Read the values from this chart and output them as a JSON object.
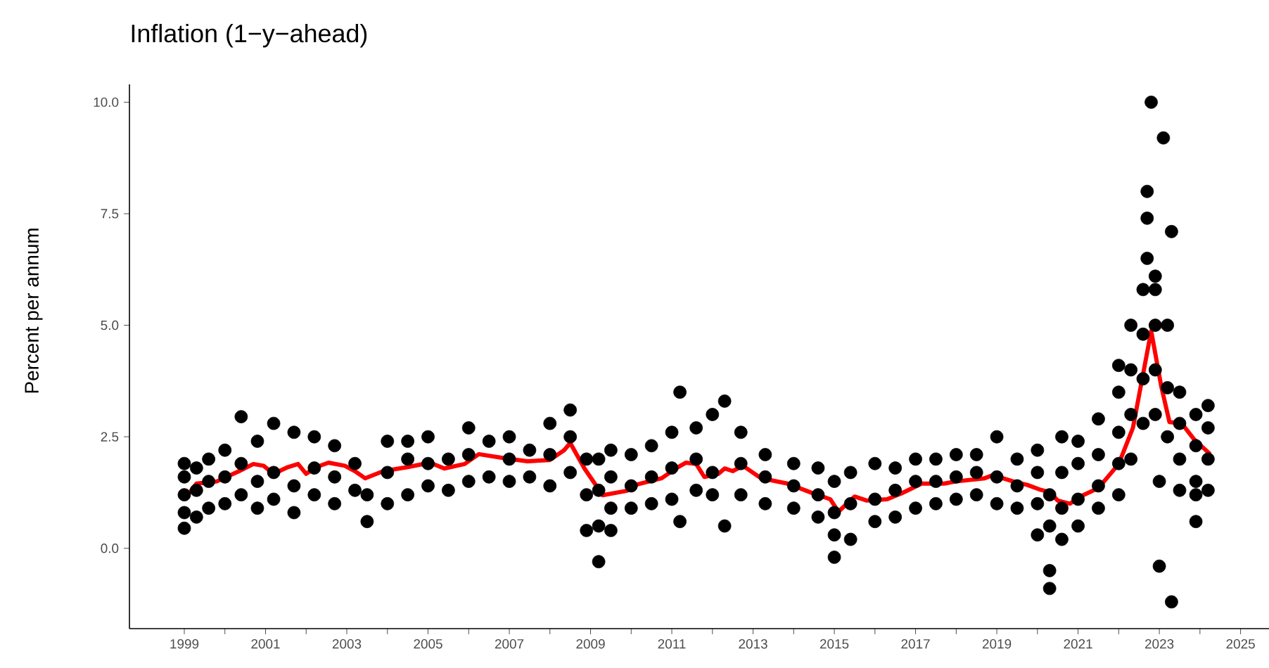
{
  "chart_data": {
    "type": "scatter",
    "title": "Inflation (1−y−ahead)",
    "ylabel": "Percent per annum",
    "xlim": [
      1997.65,
      2025.7
    ],
    "ylim": [
      -1.8,
      10.4
    ],
    "xticks": [
      1999,
      {
        "value": 2000,
        "label": null
      },
      2001,
      {
        "value": 2002,
        "label": null
      },
      2003,
      {
        "value": 2004,
        "label": null
      },
      2005,
      {
        "value": 2006,
        "label": null
      },
      2007,
      {
        "value": 2008,
        "label": null
      },
      2009,
      {
        "value": 2010,
        "label": null
      },
      2011,
      {
        "value": 2012,
        "label": null
      },
      2013,
      {
        "value": 2014,
        "label": null
      },
      2015,
      {
        "value": 2016,
        "label": null
      },
      2017,
      {
        "value": 2018,
        "label": null
      },
      2019,
      {
        "value": 2020,
        "label": null
      },
      2021,
      {
        "value": 2022,
        "label": null
      },
      2023,
      {
        "value": 2024,
        "label": null
      },
      2025
    ],
    "yticks": [
      {
        "value": 0,
        "label": "0.0"
      },
      2.5,
      {
        "value": 5,
        "label": "5.0"
      },
      7.5,
      {
        "value": 10,
        "label": "10.0"
      }
    ],
    "series": [
      {
        "color": "#000000",
        "marker": "circle",
        "x": [
          1999.0,
          1999.0,
          1999.0,
          1999.0,
          1999.0,
          1999.3,
          1999.3,
          1999.3,
          1999.6,
          1999.6,
          1999.6,
          2000.0,
          2000.0,
          2000.0,
          2000.4,
          2000.4,
          2000.4,
          2000.8,
          2000.8,
          2000.8,
          2001.2,
          2001.2,
          2001.2,
          2001.7,
          2001.7,
          2001.7,
          2002.2,
          2002.2,
          2002.2,
          2002.7,
          2002.7,
          2002.7,
          2003.2,
          2003.2,
          2003.5,
          2003.5,
          2004.0,
          2004.0,
          2004.0,
          2004.5,
          2004.5,
          2004.5,
          2005.0,
          2005.0,
          2005.0,
          2005.5,
          2005.5,
          2006.0,
          2006.0,
          2006.0,
          2006.5,
          2006.5,
          2007.0,
          2007.0,
          2007.0,
          2007.5,
          2007.5,
          2008.0,
          2008.0,
          2008.0,
          2008.5,
          2008.5,
          2008.5,
          2008.9,
          2008.9,
          2008.9,
          2009.2,
          2009.2,
          2009.2,
          2009.2,
          2009.5,
          2009.5,
          2009.5,
          2009.5,
          2010.0,
          2010.0,
          2010.0,
          2010.5,
          2010.5,
          2010.5,
          2011.0,
          2011.0,
          2011.0,
          2011.2,
          2011.2,
          2011.6,
          2011.6,
          2011.6,
          2012.0,
          2012.0,
          2012.0,
          2012.3,
          2012.3,
          2012.7,
          2012.7,
          2012.7,
          2013.3,
          2013.3,
          2013.3,
          2014.0,
          2014.0,
          2014.0,
          2014.6,
          2014.6,
          2014.6,
          2015.0,
          2015.0,
          2015.0,
          2015.0,
          2015.4,
          2015.4,
          2015.4,
          2016.0,
          2016.0,
          2016.0,
          2016.5,
          2016.5,
          2016.5,
          2017.0,
          2017.0,
          2017.0,
          2017.5,
          2017.5,
          2017.5,
          2018.0,
          2018.0,
          2018.0,
          2018.5,
          2018.5,
          2018.5,
          2019.0,
          2019.0,
          2019.0,
          2019.5,
          2019.5,
          2019.5,
          2020.0,
          2020.0,
          2020.0,
          2020.0,
          2020.3,
          2020.3,
          2020.3,
          2020.3,
          2020.6,
          2020.6,
          2020.6,
          2020.6,
          2021.0,
          2021.0,
          2021.0,
          2021.0,
          2021.5,
          2021.5,
          2021.5,
          2021.5,
          2022.0,
          2022.0,
          2022.0,
          2022.0,
          2022.0,
          2022.3,
          2022.3,
          2022.3,
          2022.3,
          2022.6,
          2022.6,
          2022.6,
          2022.6,
          2022.8,
          2022.7,
          2022.7,
          2022.7,
          2022.9,
          2022.9,
          2022.9,
          2022.9,
          2022.9,
          2023.1,
          2023.0,
          2023.0,
          2023.3,
          2023.3,
          2023.2,
          2023.2,
          2023.2,
          2023.5,
          2023.5,
          2023.5,
          2023.5,
          2023.9,
          2023.9,
          2023.9,
          2023.9,
          2023.9,
          2024.2,
          2024.2,
          2024.2,
          2024.2
        ],
        "values": [
          0.45,
          0.8,
          1.2,
          1.6,
          1.9,
          0.7,
          1.3,
          1.8,
          0.9,
          1.5,
          2.0,
          1.0,
          1.6,
          2.2,
          2.95,
          1.2,
          1.9,
          0.9,
          1.5,
          2.4,
          1.1,
          1.7,
          2.8,
          0.8,
          1.4,
          2.6,
          1.2,
          1.8,
          2.5,
          1.0,
          1.6,
          2.3,
          1.3,
          1.9,
          0.6,
          1.2,
          1.0,
          1.7,
          2.4,
          1.2,
          2.0,
          2.4,
          1.4,
          1.9,
          2.5,
          1.3,
          2.0,
          1.5,
          2.1,
          2.7,
          1.6,
          2.4,
          1.5,
          2.0,
          2.5,
          1.6,
          2.2,
          1.4,
          2.1,
          2.8,
          1.7,
          2.5,
          3.1,
          0.4,
          1.2,
          2.0,
          -0.3,
          0.5,
          1.3,
          2.0,
          0.4,
          0.9,
          1.6,
          2.2,
          0.9,
          1.4,
          2.1,
          1.0,
          1.6,
          2.3,
          1.1,
          1.8,
          2.6,
          3.5,
          0.6,
          1.3,
          2.0,
          2.7,
          1.2,
          1.7,
          3.0,
          3.3,
          0.5,
          1.2,
          1.9,
          2.6,
          1.0,
          1.6,
          2.1,
          0.9,
          1.4,
          1.9,
          0.7,
          1.2,
          1.8,
          -0.2,
          0.3,
          0.8,
          1.5,
          0.2,
          1.0,
          1.7,
          0.6,
          1.1,
          1.9,
          0.7,
          1.3,
          1.8,
          0.9,
          1.5,
          2.0,
          1.0,
          1.5,
          2.0,
          1.1,
          1.6,
          2.1,
          1.2,
          1.7,
          2.1,
          1.0,
          1.6,
          2.5,
          0.9,
          1.4,
          2.0,
          0.3,
          1.0,
          1.7,
          2.2,
          -0.5,
          -0.9,
          0.5,
          1.2,
          0.2,
          0.9,
          1.7,
          2.5,
          0.5,
          1.1,
          1.9,
          2.4,
          0.9,
          1.4,
          2.1,
          2.9,
          1.2,
          1.9,
          2.6,
          3.5,
          4.1,
          2.0,
          3.0,
          4.0,
          5.0,
          2.8,
          3.8,
          4.8,
          5.8,
          10.0,
          8.0,
          7.4,
          6.5,
          3.0,
          4.0,
          5.0,
          5.8,
          6.1,
          9.2,
          1.5,
          -0.4,
          7.1,
          -1.2,
          5.0,
          2.5,
          3.6,
          2.0,
          2.8,
          3.5,
          1.3,
          1.5,
          2.3,
          3.0,
          0.6,
          1.2,
          1.3,
          2.0,
          2.7,
          3.2
        ]
      },
      {
        "type": "line",
        "color": "#ff0000",
        "marker": "none",
        "x": [
          1999.0,
          1999.3,
          1999.8,
          2000.35,
          2000.7,
          2000.95,
          2001.2,
          2001.55,
          2001.8,
          2002.0,
          2002.25,
          2002.55,
          2002.95,
          2003.2,
          2003.45,
          2003.9,
          2004.5,
          2005.05,
          2005.4,
          2005.9,
          2006.25,
          2006.95,
          2007.45,
          2008.0,
          2008.35,
          2008.5,
          2008.85,
          2009.3,
          2009.9,
          2010.1,
          2010.75,
          2011.1,
          2011.35,
          2011.6,
          2011.8,
          2012.15,
          2012.3,
          2012.5,
          2012.75,
          2013.2,
          2013.85,
          2014.4,
          2014.9,
          2015.1,
          2015.5,
          2015.8,
          2016.3,
          2016.65,
          2017.15,
          2017.7,
          2018.0,
          2018.7,
          2018.9,
          2019.4,
          2019.75,
          2020.05,
          2020.3,
          2020.5,
          2020.8,
          2021.05,
          2021.5,
          2022.0,
          2022.35,
          2022.8,
          2023.05,
          2023.25,
          2023.55,
          2023.85,
          2024.25
        ],
        "values": [
          1.1,
          1.45,
          1.5,
          1.73,
          1.89,
          1.85,
          1.67,
          1.82,
          1.89,
          1.67,
          1.82,
          1.92,
          1.85,
          1.73,
          1.57,
          1.73,
          1.82,
          1.92,
          1.79,
          1.89,
          2.11,
          2.01,
          1.95,
          1.98,
          2.2,
          2.36,
          1.79,
          1.19,
          1.29,
          1.42,
          1.57,
          1.79,
          1.92,
          1.89,
          1.6,
          1.67,
          1.79,
          1.73,
          1.85,
          1.57,
          1.45,
          1.26,
          1.1,
          0.82,
          1.16,
          1.07,
          1.1,
          1.23,
          1.45,
          1.45,
          1.5,
          1.57,
          1.64,
          1.5,
          1.42,
          1.32,
          1.26,
          1.07,
          1.0,
          1.16,
          1.35,
          1.89,
          2.7,
          4.87,
          3.62,
          2.83,
          2.8,
          2.45,
          2.11
        ]
      }
    ]
  }
}
